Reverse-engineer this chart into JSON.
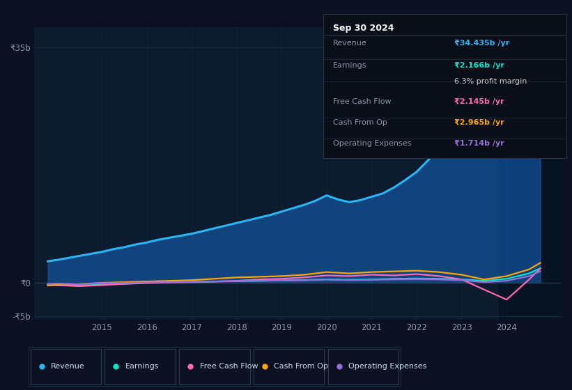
{
  "bg_color": "#0b1120",
  "plot_bg_color": "#0d1b2e",
  "grid_color": "#1a2d45",
  "zero_line_color": "#2a3a50",
  "title_box": {
    "date": "Sep 30 2024",
    "rows": [
      {
        "label": "Revenue",
        "value": "₹34.435b /yr",
        "value_color": "#29b6f6",
        "label_color": "#8899aa"
      },
      {
        "label": "Earnings",
        "value": "₹2.166b /yr",
        "value_color": "#00e5cc",
        "label_color": "#8899aa"
      },
      {
        "label": "",
        "value": "6.3% profit margin",
        "value_color": "#cccccc",
        "label_color": ""
      },
      {
        "label": "Free Cash Flow",
        "value": "₹2.145b /yr",
        "value_color": "#ff69b4",
        "label_color": "#8899aa"
      },
      {
        "label": "Cash From Op",
        "value": "₹2.965b /yr",
        "value_color": "#ffa500",
        "label_color": "#8899aa"
      },
      {
        "label": "Operating Expenses",
        "value": "₹1.714b /yr",
        "value_color": "#9370db",
        "label_color": "#8899aa"
      }
    ]
  },
  "ylim": [
    -5.5,
    38
  ],
  "yticks": [
    -5,
    0,
    35
  ],
  "ytick_labels": [
    "-₹5b",
    "₹0",
    "₹35b"
  ],
  "xlim": [
    2013.5,
    2025.2
  ],
  "xticks": [
    2015,
    2016,
    2017,
    2018,
    2019,
    2020,
    2021,
    2022,
    2023,
    2024
  ],
  "legend": [
    {
      "label": "Revenue",
      "color": "#29b6f6"
    },
    {
      "label": "Earnings",
      "color": "#00e5cc"
    },
    {
      "label": "Free Cash Flow",
      "color": "#ff69b4"
    },
    {
      "label": "Cash From Op",
      "color": "#ffa500"
    },
    {
      "label": "Operating Expenses",
      "color": "#9370db"
    }
  ],
  "revenue_x": [
    2013.8,
    2014.0,
    2014.25,
    2014.5,
    2014.75,
    2015.0,
    2015.25,
    2015.5,
    2015.75,
    2016.0,
    2016.25,
    2016.5,
    2016.75,
    2017.0,
    2017.25,
    2017.5,
    2017.75,
    2018.0,
    2018.25,
    2018.5,
    2018.75,
    2019.0,
    2019.25,
    2019.5,
    2019.75,
    2020.0,
    2020.25,
    2020.5,
    2020.75,
    2021.0,
    2021.25,
    2021.5,
    2021.75,
    2022.0,
    2022.25,
    2022.5,
    2022.75,
    2023.0,
    2023.25,
    2023.5,
    2023.75,
    2024.0,
    2024.25,
    2024.5,
    2024.75
  ],
  "revenue_y": [
    3.2,
    3.4,
    3.7,
    4.0,
    4.3,
    4.6,
    5.0,
    5.3,
    5.7,
    6.0,
    6.4,
    6.7,
    7.0,
    7.3,
    7.7,
    8.1,
    8.5,
    8.9,
    9.3,
    9.7,
    10.1,
    10.6,
    11.1,
    11.6,
    12.2,
    13.0,
    12.4,
    12.0,
    12.3,
    12.8,
    13.3,
    14.2,
    15.3,
    16.5,
    18.2,
    20.0,
    22.5,
    25.0,
    27.5,
    30.0,
    32.5,
    34.0,
    34.3,
    34.4,
    34.435
  ],
  "earnings_x": [
    2013.8,
    2014.0,
    2014.5,
    2015.0,
    2015.5,
    2016.0,
    2016.5,
    2017.0,
    2017.5,
    2018.0,
    2018.5,
    2019.0,
    2019.5,
    2020.0,
    2020.5,
    2021.0,
    2021.5,
    2022.0,
    2022.5,
    2023.0,
    2023.5,
    2024.0,
    2024.5,
    2024.75
  ],
  "earnings_y": [
    -0.3,
    -0.35,
    -0.4,
    -0.25,
    -0.15,
    0.05,
    0.1,
    0.15,
    0.2,
    0.25,
    0.3,
    0.35,
    0.4,
    0.5,
    0.45,
    0.5,
    0.6,
    0.65,
    0.6,
    0.5,
    0.3,
    0.6,
    1.4,
    2.166
  ],
  "fcf_x": [
    2013.8,
    2014.0,
    2014.5,
    2015.0,
    2015.5,
    2016.0,
    2016.5,
    2017.0,
    2017.5,
    2018.0,
    2018.5,
    2019.0,
    2019.5,
    2020.0,
    2020.5,
    2021.0,
    2021.5,
    2022.0,
    2022.5,
    2023.0,
    2023.5,
    2024.0,
    2024.5,
    2024.75
  ],
  "fcf_y": [
    -0.3,
    -0.35,
    -0.5,
    -0.35,
    -0.15,
    -0.05,
    0.05,
    0.1,
    0.2,
    0.3,
    0.5,
    0.6,
    0.8,
    1.1,
    1.0,
    1.2,
    1.1,
    1.3,
    1.0,
    0.5,
    -1.0,
    -2.5,
    0.5,
    2.145
  ],
  "cfo_x": [
    2013.8,
    2014.0,
    2014.5,
    2015.0,
    2015.5,
    2016.0,
    2016.5,
    2017.0,
    2017.5,
    2018.0,
    2018.5,
    2019.0,
    2019.5,
    2020.0,
    2020.5,
    2021.0,
    2021.5,
    2022.0,
    2022.5,
    2023.0,
    2023.5,
    2024.0,
    2024.5,
    2024.75
  ],
  "cfo_y": [
    -0.4,
    -0.3,
    -0.2,
    0.0,
    0.1,
    0.2,
    0.3,
    0.4,
    0.6,
    0.8,
    0.9,
    1.0,
    1.2,
    1.6,
    1.4,
    1.6,
    1.7,
    1.8,
    1.6,
    1.2,
    0.5,
    1.0,
    2.0,
    2.965
  ],
  "opex_x": [
    2013.8,
    2014.0,
    2014.5,
    2015.0,
    2015.5,
    2016.0,
    2016.5,
    2017.0,
    2017.5,
    2018.0,
    2018.5,
    2019.0,
    2019.5,
    2020.0,
    2020.5,
    2021.0,
    2021.5,
    2022.0,
    2022.5,
    2023.0,
    2023.5,
    2024.0,
    2024.5,
    2024.75
  ],
  "opex_y": [
    -0.15,
    -0.1,
    -0.2,
    -0.05,
    0.0,
    0.05,
    0.1,
    0.15,
    0.2,
    0.25,
    0.3,
    0.35,
    0.4,
    0.5,
    0.4,
    0.45,
    0.5,
    0.55,
    0.5,
    0.4,
    0.1,
    0.3,
    1.0,
    1.714
  ],
  "shaded_start": 2023.83
}
